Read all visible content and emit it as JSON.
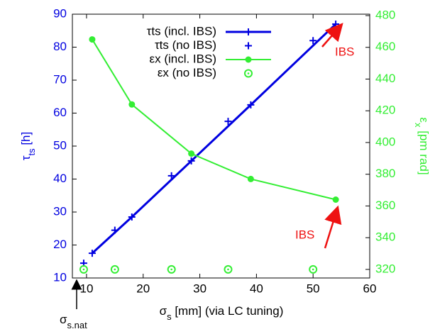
{
  "chart_data": {
    "type": "line",
    "xlabel": [
      "σ",
      "s",
      " [mm] (via LC tuning)"
    ],
    "ylabel": [
      "τ",
      "ts",
      " [h]"
    ],
    "y2label": [
      "ε",
      "x",
      " [pm rad]"
    ],
    "xlim": [
      7.5,
      60
    ],
    "xticks": [
      10,
      20,
      30,
      40,
      50,
      60
    ],
    "ylim": [
      10,
      90
    ],
    "yticks": [
      10,
      20,
      30,
      40,
      50,
      60,
      70,
      80,
      90
    ],
    "y2lim": [
      314.6,
      480.9
    ],
    "y2ticks": [
      320,
      340,
      360,
      380,
      400,
      420,
      440,
      460,
      480
    ],
    "left_axis_color": "#0000e0",
    "right_axis_color": "#33ee33",
    "series": [
      {
        "name": "τts (incl. IBS)",
        "color": "#0000e0",
        "marker": "plus",
        "line": true,
        "x": [
          11,
          18,
          28.5,
          39,
          54
        ],
        "values": [
          17.5,
          28.5,
          45.5,
          62.5,
          87
        ]
      },
      {
        "name": "τts (no IBS)",
        "color": "#0000e0",
        "marker": "plus",
        "line": false,
        "x": [
          9.5,
          15,
          25,
          35,
          50
        ],
        "values": [
          14.5,
          24.5,
          41,
          57.5,
          82
        ]
      },
      {
        "name": "εx (incl. IBS)",
        "color": "#33ee33",
        "marker": "dot",
        "line": true,
        "axis": "y2",
        "x": [
          11,
          18,
          28.5,
          39,
          54
        ],
        "values": [
          465,
          424,
          393,
          377,
          364
        ]
      },
      {
        "name": "εx (no IBS)",
        "color": "#33ee33",
        "marker": "ring",
        "line": false,
        "axis": "y2",
        "x": [
          9.5,
          15,
          25,
          35,
          50
        ],
        "values": [
          320,
          320,
          320,
          320,
          320
        ]
      }
    ],
    "annotations": [
      {
        "text": "IBS",
        "color": "#ee1111"
      },
      {
        "text": "IBS",
        "color": "#ee1111"
      },
      {
        "text": [
          "σ",
          "s.nat"
        ],
        "color": "#000000"
      }
    ]
  }
}
